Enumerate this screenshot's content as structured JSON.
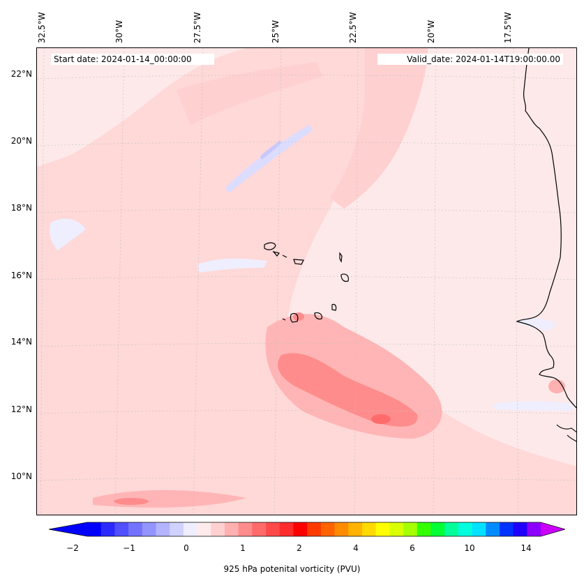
{
  "header": {
    "start_date": "Start date: 2024-01-14_00:00:00",
    "valid_date": "Valid_date: 2024-01-14T19:00:00.00"
  },
  "longitude_labels": [
    "32.5°W",
    "30°W",
    "27.5°W",
    "25°W",
    "22.5°W",
    "20°W",
    "17.5°W"
  ],
  "latitude_labels": [
    "22°N",
    "20°N",
    "18°N",
    "16°N",
    "14°N",
    "12°N",
    "10°N"
  ],
  "colorbar": {
    "label": "925 hPa potenital vorticity (PVU)",
    "ticks": [
      "−2",
      "−1",
      "0",
      "1",
      "2",
      "4",
      "6",
      "10",
      "14"
    ],
    "colors": [
      "#0000ff",
      "#2a2aff",
      "#5050ff",
      "#7373ff",
      "#9494ff",
      "#b3b3ff",
      "#d1d1ff",
      "#eeeeff",
      "#ffebeb",
      "#ffd0d0",
      "#ffb0b0",
      "#ff8c8c",
      "#ff6b6b",
      "#ff4a4a",
      "#ff2c2c",
      "#ff0000",
      "#ff3a00",
      "#ff6400",
      "#ff8c00",
      "#ffb300",
      "#ffd900",
      "#ffff00",
      "#d9ff00",
      "#a6ff00",
      "#33ff00",
      "#00ff33",
      "#00ff99",
      "#00ffdd",
      "#00e1ff",
      "#008cff",
      "#0033ff",
      "#1f00ff",
      "#8c00ff"
    ],
    "extend_left_color": "#0000ff",
    "extend_right_color": "#cc00ff"
  },
  "colors": {
    "background_field": "#fde9e9",
    "light_red": "#ffd0d0",
    "medium_red": "#ffb0b0",
    "strong_red": "#ff8c8c",
    "light_blue": "#eeeeff",
    "blue": "#c8c8ff"
  }
}
